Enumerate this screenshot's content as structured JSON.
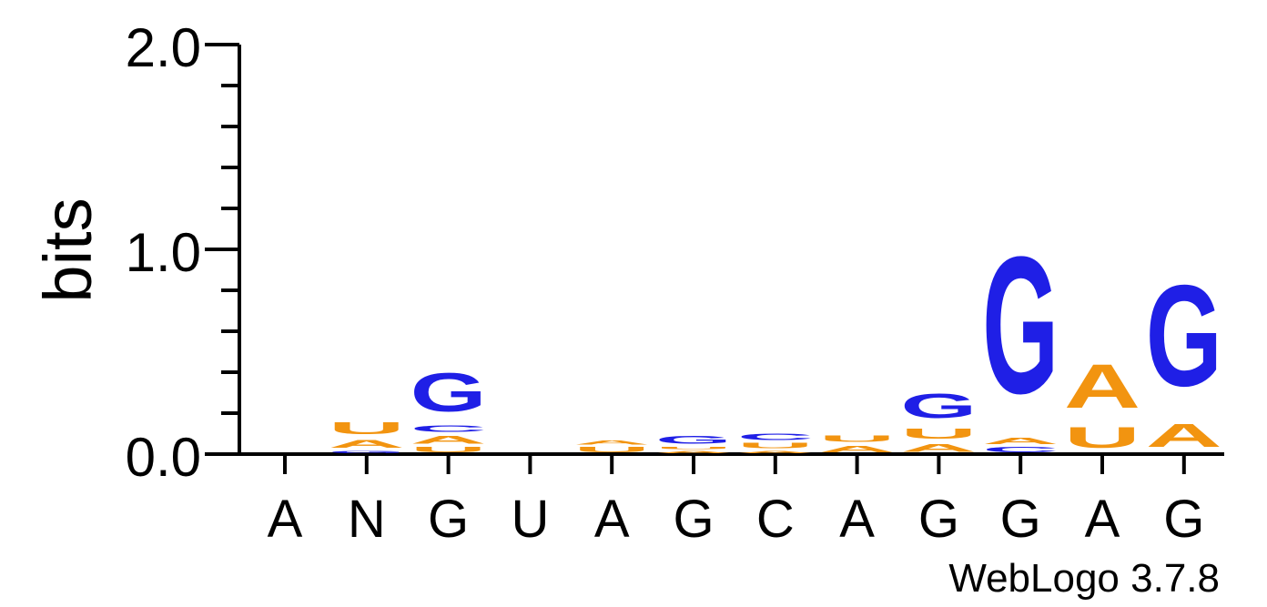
{
  "chart_data": {
    "type": "sequence-logo",
    "ylabel": "bits",
    "ylim": [
      0,
      2
    ],
    "yticks": [
      "0.0",
      "1.0",
      "2.0"
    ],
    "consensus": [
      "A",
      "N",
      "G",
      "U",
      "A",
      "G",
      "C",
      "A",
      "G",
      "G",
      "A",
      "G"
    ],
    "colors": {
      "A": "#f29410",
      "U": "#f29410",
      "G": "#1f1fe6",
      "C": "#1f1fe6"
    },
    "positions": [
      {
        "stack": []
      },
      {
        "stack": [
          {
            "letter": "G",
            "height": 0.02
          },
          {
            "letter": "A",
            "height": 0.06
          },
          {
            "letter": "U",
            "height": 0.09
          }
        ]
      },
      {
        "stack": [
          {
            "letter": "U",
            "height": 0.04
          },
          {
            "letter": "A",
            "height": 0.06
          },
          {
            "letter": "C",
            "height": 0.05
          },
          {
            "letter": "G",
            "height": 0.3
          }
        ]
      },
      {
        "stack": []
      },
      {
        "stack": [
          {
            "letter": "U",
            "height": 0.04
          },
          {
            "letter": "A",
            "height": 0.03
          }
        ]
      },
      {
        "stack": [
          {
            "letter": "A",
            "height": 0.02
          },
          {
            "letter": "U",
            "height": 0.02
          },
          {
            "letter": "G",
            "height": 0.06
          }
        ]
      },
      {
        "stack": [
          {
            "letter": "A",
            "height": 0.02
          },
          {
            "letter": "U",
            "height": 0.04
          },
          {
            "letter": "C",
            "height": 0.05
          }
        ]
      },
      {
        "stack": [
          {
            "letter": "A",
            "height": 0.05
          },
          {
            "letter": "U",
            "height": 0.05
          }
        ]
      },
      {
        "stack": [
          {
            "letter": "A",
            "height": 0.06
          },
          {
            "letter": "U",
            "height": 0.08
          },
          {
            "letter": "G",
            "height": 0.19
          }
        ]
      },
      {
        "stack": [
          {
            "letter": "C",
            "height": 0.04
          },
          {
            "letter": "A",
            "height": 0.05
          },
          {
            "letter": "G",
            "height": 1.07
          }
        ]
      },
      {
        "stack": [
          {
            "letter": "U",
            "height": 0.16
          },
          {
            "letter": "A",
            "height": 0.34
          }
        ]
      },
      {
        "stack": [
          {
            "letter": "A",
            "height": 0.18
          },
          {
            "letter": "G",
            "height": 0.79
          }
        ]
      }
    ]
  },
  "footer": {
    "credit": "WebLogo 3.7.8"
  }
}
